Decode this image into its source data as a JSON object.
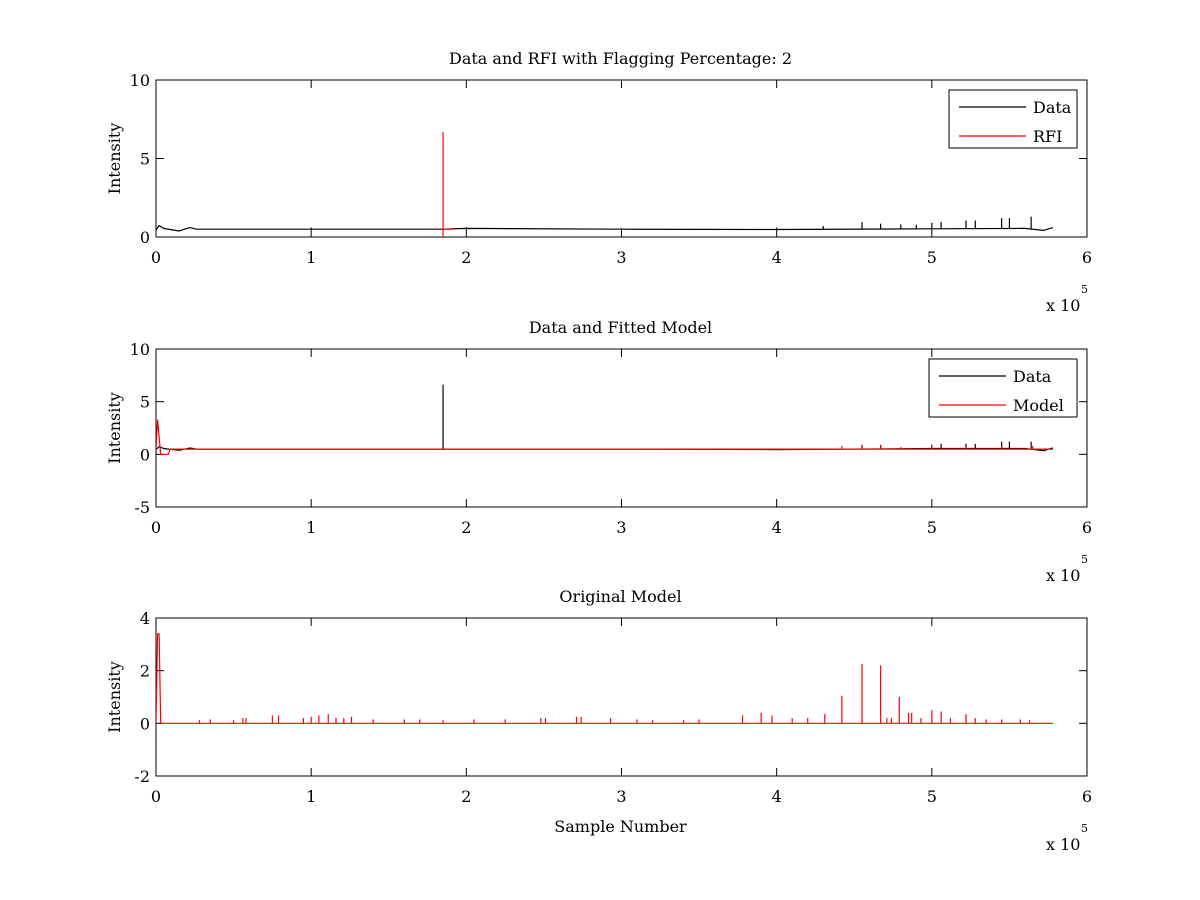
{
  "figure": {
    "background": "#ffffff"
  },
  "chart_data": [
    {
      "type": "line",
      "title": "Data and RFI with Flagging Percentage: 2",
      "xlabel": "",
      "ylabel": "Intensity",
      "xlim": [
        0,
        600000
      ],
      "ylim": [
        0,
        10
      ],
      "xticks": [
        0,
        1,
        2,
        3,
        4,
        5,
        6
      ],
      "yticks": [
        0,
        5,
        10
      ],
      "x_multiplier": "x 10",
      "x_multiplier_exponent": "5",
      "legend": {
        "placement": "top-right",
        "entries": [
          "Data",
          "RFI"
        ]
      },
      "series": [
        {
          "name": "Data",
          "color": "#000000",
          "baseline": 0.5,
          "x_end": 578000,
          "segments": [
            [
              0,
              0.45
            ],
            [
              2000,
              0.72
            ],
            [
              5000,
              0.55
            ],
            [
              9000,
              0.48
            ],
            [
              15000,
              0.38
            ],
            [
              19000,
              0.52
            ],
            [
              22000,
              0.6
            ],
            [
              26000,
              0.5
            ],
            [
              100000,
              0.5
            ],
            [
              184000,
              0.5
            ],
            [
              200000,
              0.55
            ],
            [
              300000,
              0.5
            ],
            [
              400000,
              0.48
            ],
            [
              500000,
              0.52
            ],
            [
              560000,
              0.55
            ],
            [
              572000,
              0.42
            ],
            [
              578000,
              0.6
            ]
          ],
          "spikes": [
            [
              100000,
              0.6
            ],
            [
              200000,
              0.62
            ],
            [
              300000,
              0.58
            ],
            [
              400000,
              0.6
            ],
            [
              430000,
              0.7
            ],
            [
              455000,
              0.95
            ],
            [
              467000,
              0.85
            ],
            [
              480000,
              0.8
            ],
            [
              490000,
              0.78
            ],
            [
              500000,
              0.9
            ],
            [
              506000,
              0.95
            ],
            [
              522000,
              1.05
            ],
            [
              528000,
              1.05
            ],
            [
              545000,
              1.2
            ],
            [
              550000,
              1.2
            ],
            [
              564000,
              1.3
            ]
          ]
        },
        {
          "name": "RFI",
          "color": "#ff0000",
          "spikes": [
            [
              185000,
              6.7
            ]
          ],
          "segments": [
            [
              185000,
              0.5
            ],
            [
              192000,
              0.5
            ]
          ]
        }
      ]
    },
    {
      "type": "line",
      "title": "Data and Fitted Model",
      "xlabel": "",
      "ylabel": "Intensity",
      "xlim": [
        0,
        600000
      ],
      "ylim": [
        -5,
        10
      ],
      "xticks": [
        0,
        1,
        2,
        3,
        4,
        5,
        6
      ],
      "yticks": [
        -5,
        0,
        5,
        10
      ],
      "x_multiplier": "x 10",
      "x_multiplier_exponent": "5",
      "legend": {
        "placement": "top-right",
        "entries": [
          "Data",
          "Model"
        ]
      },
      "series": [
        {
          "name": "Data",
          "color": "#000000",
          "baseline": 0.5,
          "x_end": 578000,
          "segments": [
            [
              0,
              0.45
            ],
            [
              2000,
              0.72
            ],
            [
              5000,
              0.55
            ],
            [
              9000,
              0.48
            ],
            [
              15000,
              0.38
            ],
            [
              19000,
              0.52
            ],
            [
              22000,
              0.6
            ],
            [
              26000,
              0.5
            ],
            [
              300000,
              0.5
            ],
            [
              400000,
              0.45
            ],
            [
              500000,
              0.55
            ],
            [
              560000,
              0.55
            ],
            [
              572000,
              0.35
            ],
            [
              578000,
              0.6
            ]
          ],
          "spikes": [
            [
              185000,
              6.6
            ],
            [
              455000,
              0.9
            ],
            [
              467000,
              0.9
            ],
            [
              500000,
              0.9
            ],
            [
              506000,
              1.0
            ],
            [
              522000,
              1.0
            ],
            [
              528000,
              1.0
            ],
            [
              545000,
              1.2
            ],
            [
              550000,
              1.2
            ],
            [
              564000,
              1.2
            ]
          ]
        },
        {
          "name": "Model",
          "color": "#ff0000",
          "baseline": 0.5,
          "x_end": 578000,
          "segments": [
            [
              0,
              0.5
            ],
            [
              1000,
              3.3
            ],
            [
              3000,
              0
            ],
            [
              8000,
              0
            ],
            [
              9000,
              0.5
            ],
            [
              578000,
              0.5
            ]
          ],
          "spikes": [
            [
              442000,
              0.8
            ],
            [
              455000,
              0.8
            ],
            [
              467000,
              0.9
            ],
            [
              480000,
              0.7
            ],
            [
              500000,
              0.8
            ],
            [
              522000,
              0.7
            ],
            [
              545000,
              0.8
            ],
            [
              565000,
              0.8
            ]
          ]
        }
      ]
    },
    {
      "type": "line",
      "title": "Original Model",
      "xlabel": "Sample Number",
      "ylabel": "Intensity",
      "xlim": [
        0,
        600000
      ],
      "ylim": [
        -2,
        4
      ],
      "xticks": [
        0,
        1,
        2,
        3,
        4,
        5,
        6
      ],
      "yticks": [
        -2,
        0,
        2,
        4
      ],
      "x_multiplier": "x 10",
      "x_multiplier_exponent": "5",
      "legend": null,
      "series": [
        {
          "name": "Model",
          "color": "#ff0000",
          "baseline": 0.0,
          "x_end": 578000,
          "segments": [
            [
              0,
              0
            ],
            [
              1000,
              3.4
            ],
            [
              2000,
              3.4
            ],
            [
              3000,
              0
            ],
            [
              578000,
              0
            ]
          ],
          "spikes": [
            [
              28000,
              0.12
            ],
            [
              35000,
              0.15
            ],
            [
              50000,
              0.12
            ],
            [
              56000,
              0.2
            ],
            [
              58000,
              0.2
            ],
            [
              75000,
              0.3
            ],
            [
              79000,
              0.3
            ],
            [
              95000,
              0.2
            ],
            [
              100000,
              0.25
            ],
            [
              105000,
              0.3
            ],
            [
              111000,
              0.35
            ],
            [
              116000,
              0.2
            ],
            [
              121000,
              0.2
            ],
            [
              126000,
              0.25
            ],
            [
              140000,
              0.15
            ],
            [
              160000,
              0.15
            ],
            [
              170000,
              0.15
            ],
            [
              185000,
              0.12
            ],
            [
              205000,
              0.15
            ],
            [
              225000,
              0.15
            ],
            [
              248000,
              0.2
            ],
            [
              251000,
              0.2
            ],
            [
              271000,
              0.25
            ],
            [
              274000,
              0.25
            ],
            [
              293000,
              0.2
            ],
            [
              310000,
              0.15
            ],
            [
              320000,
              0.12
            ],
            [
              340000,
              0.12
            ],
            [
              350000,
              0.15
            ],
            [
              378000,
              0.3
            ],
            [
              390000,
              0.4
            ],
            [
              397000,
              0.3
            ],
            [
              410000,
              0.2
            ],
            [
              420000,
              0.2
            ],
            [
              431000,
              0.35
            ],
            [
              442000,
              1.05
            ],
            [
              455000,
              2.25
            ],
            [
              467000,
              2.2
            ],
            [
              471000,
              0.2
            ],
            [
              474000,
              0.2
            ],
            [
              479000,
              1.0
            ],
            [
              485000,
              0.4
            ],
            [
              487000,
              0.4
            ],
            [
              493000,
              0.2
            ],
            [
              500000,
              0.5
            ],
            [
              506000,
              0.45
            ],
            [
              512000,
              0.2
            ],
            [
              522000,
              0.35
            ],
            [
              528000,
              0.2
            ],
            [
              535000,
              0.15
            ],
            [
              545000,
              0.15
            ],
            [
              557000,
              0.15
            ],
            [
              563000,
              0.12
            ]
          ]
        }
      ]
    }
  ]
}
